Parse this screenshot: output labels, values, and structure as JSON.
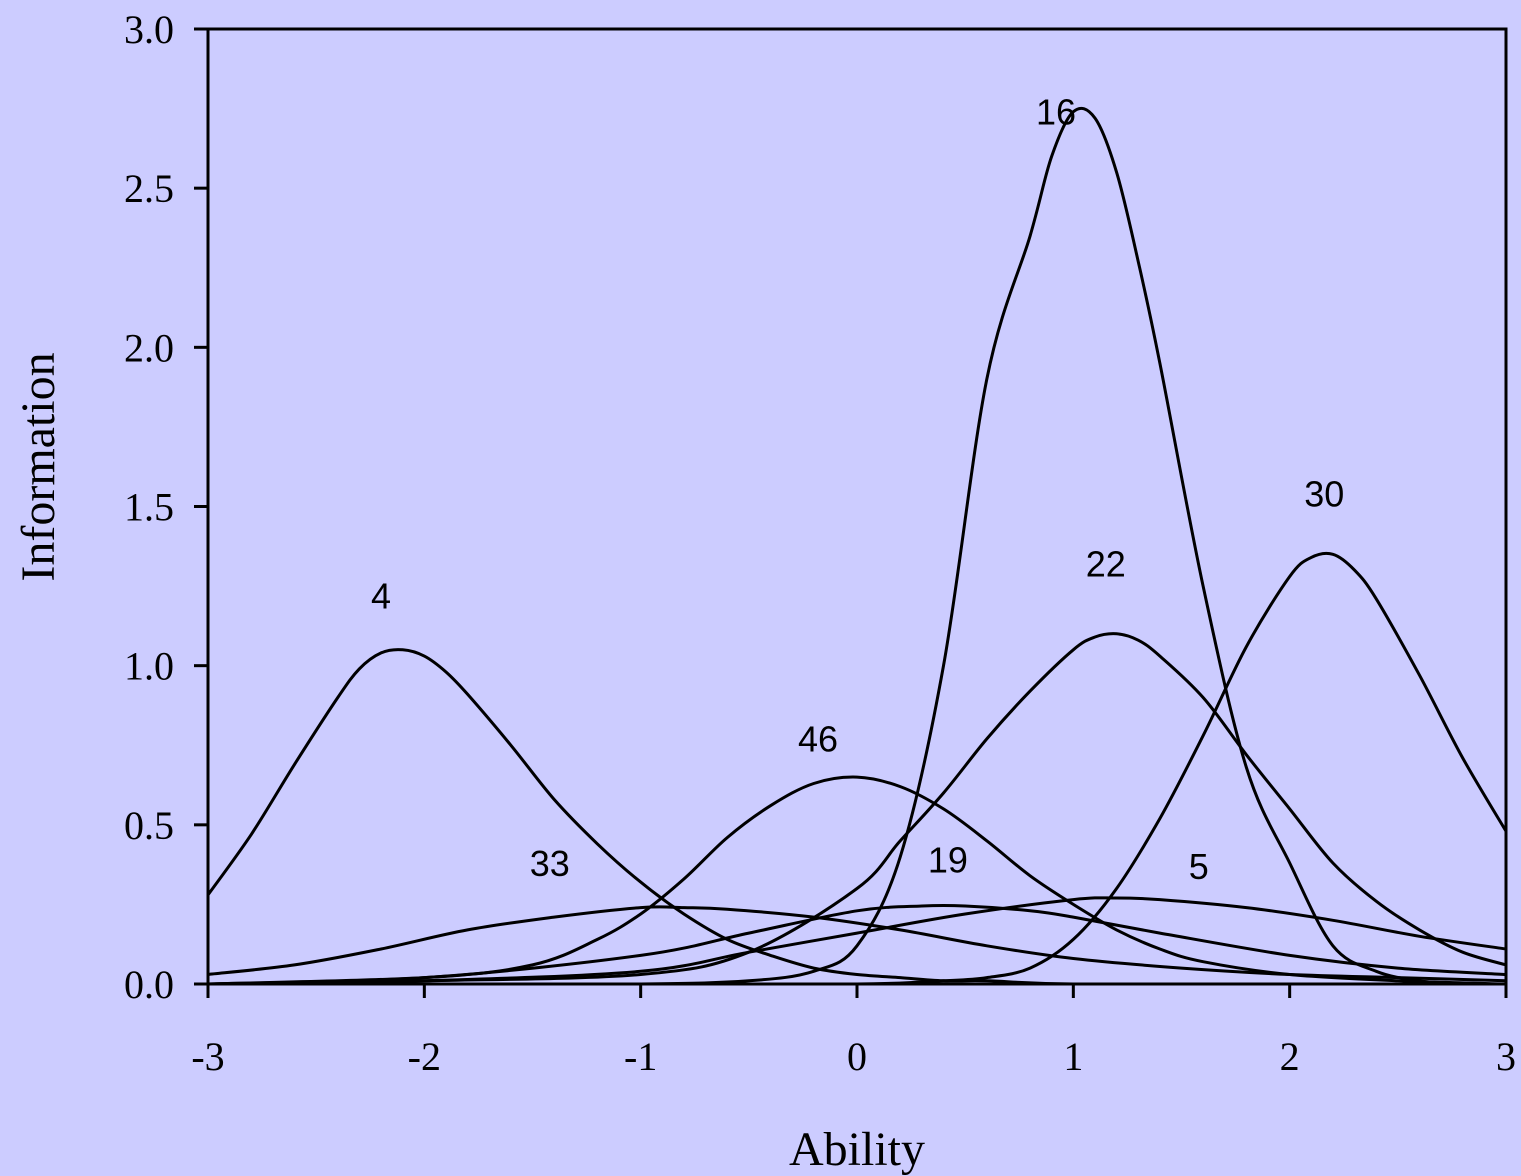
{
  "chart_data": {
    "type": "line",
    "title": "",
    "xlabel": "Ability",
    "ylabel": "Information",
    "xlim": [
      -3,
      3
    ],
    "ylim": [
      0,
      3
    ],
    "xticks": [
      -3,
      -2,
      -1,
      0,
      1,
      2,
      3
    ],
    "xtick_labels": [
      "-3",
      "-2",
      "-1",
      "0",
      "1",
      "2",
      "3"
    ],
    "yticks": [
      0,
      0.5,
      1,
      1.5,
      2,
      2.5,
      3
    ],
    "ytick_labels": [
      "0.0",
      "0.5",
      "1.0",
      "1.5",
      "2.0",
      "2.5",
      "3.0"
    ],
    "grid": false,
    "legend": "none (curves labeled directly)",
    "line_color": "#000000",
    "background_color": "#ccccff",
    "series": [
      {
        "name": "16",
        "label_at": [
          0.92,
          2.7
        ],
        "x": [
          -3,
          -2,
          -1,
          -0.5,
          -0.2,
          0,
          0.2,
          0.4,
          0.6,
          0.8,
          0.9,
          1.0,
          1.1,
          1.2,
          1.3,
          1.4,
          1.6,
          1.8,
          2.0,
          2.2,
          2.4,
          2.6,
          2.8,
          3.0
        ],
        "values": [
          0,
          0,
          0,
          0.01,
          0.04,
          0.12,
          0.4,
          1.0,
          1.9,
          2.35,
          2.6,
          2.74,
          2.72,
          2.55,
          2.27,
          1.95,
          1.25,
          0.68,
          0.38,
          0.12,
          0.04,
          0.01,
          0,
          0
        ]
      },
      {
        "name": "30",
        "label_at": [
          2.16,
          1.5
        ],
        "x": [
          -3,
          -1,
          0,
          0.4,
          0.6,
          0.8,
          1.0,
          1.2,
          1.4,
          1.6,
          1.8,
          2.0,
          2.1,
          2.2,
          2.3,
          2.4,
          2.6,
          2.8,
          3.0
        ],
        "values": [
          0,
          0,
          0,
          0.01,
          0.02,
          0.05,
          0.14,
          0.3,
          0.52,
          0.78,
          1.06,
          1.28,
          1.34,
          1.35,
          1.3,
          1.21,
          0.97,
          0.71,
          0.48
        ]
      },
      {
        "name": "22",
        "label_at": [
          1.15,
          1.28
        ],
        "x": [
          -3,
          -2,
          -1,
          -0.5,
          0,
          0.2,
          0.4,
          0.6,
          0.8,
          1.0,
          1.1,
          1.2,
          1.3,
          1.4,
          1.6,
          1.8,
          2.0,
          2.2,
          2.4,
          2.6,
          2.8,
          3.0
        ],
        "values": [
          0,
          0.01,
          0.03,
          0.1,
          0.3,
          0.45,
          0.6,
          0.77,
          0.92,
          1.05,
          1.09,
          1.1,
          1.08,
          1.03,
          0.9,
          0.72,
          0.55,
          0.38,
          0.26,
          0.17,
          0.1,
          0.06
        ]
      },
      {
        "name": "4",
        "label_at": [
          -2.2,
          1.18
        ],
        "x": [
          -3,
          -2.8,
          -2.6,
          -2.4,
          -2.3,
          -2.2,
          -2.1,
          -2.0,
          -1.9,
          -1.8,
          -1.6,
          -1.4,
          -1.2,
          -1.0,
          -0.8,
          -0.6,
          -0.4,
          -0.2,
          0,
          0.2,
          0.4,
          0.6,
          1.0,
          2.0,
          3.0
        ],
        "values": [
          0.28,
          0.47,
          0.69,
          0.9,
          0.99,
          1.04,
          1.05,
          1.03,
          0.98,
          0.91,
          0.75,
          0.58,
          0.44,
          0.32,
          0.22,
          0.14,
          0.09,
          0.05,
          0.03,
          0.02,
          0.01,
          0.01,
          0,
          0,
          0
        ]
      },
      {
        "name": "46",
        "label_at": [
          -0.18,
          0.73
        ],
        "x": [
          -3,
          -2,
          -1.5,
          -1.2,
          -1.0,
          -0.8,
          -0.6,
          -0.4,
          -0.2,
          0,
          0.2,
          0.4,
          0.6,
          0.8,
          1.0,
          1.2,
          1.4,
          1.6,
          2.0,
          2.5,
          3.0
        ],
        "values": [
          0,
          0.02,
          0.06,
          0.14,
          0.22,
          0.33,
          0.46,
          0.56,
          0.63,
          0.65,
          0.62,
          0.55,
          0.45,
          0.34,
          0.25,
          0.17,
          0.11,
          0.07,
          0.03,
          0.01,
          0
        ]
      },
      {
        "name": "33",
        "label_at": [
          -1.42,
          0.34
        ],
        "x": [
          -3,
          -2.6,
          -2.2,
          -1.8,
          -1.4,
          -1.0,
          -0.8,
          -0.6,
          -0.2,
          0.2,
          0.6,
          1.0,
          1.5,
          2.0,
          2.5,
          3.0
        ],
        "values": [
          0.03,
          0.06,
          0.11,
          0.17,
          0.21,
          0.24,
          0.24,
          0.235,
          0.21,
          0.17,
          0.12,
          0.08,
          0.05,
          0.03,
          0.02,
          0.01
        ]
      },
      {
        "name": "19",
        "label_at": [
          0.42,
          0.35
        ],
        "x": [
          -3,
          -2,
          -1,
          -0.5,
          0,
          0.3,
          0.5,
          0.8,
          1.0,
          1.4,
          2.0,
          2.5,
          3.0
        ],
        "values": [
          0,
          0.02,
          0.09,
          0.16,
          0.23,
          0.245,
          0.245,
          0.23,
          0.21,
          0.16,
          0.09,
          0.05,
          0.03
        ]
      },
      {
        "name": "5",
        "label_at": [
          1.58,
          0.33
        ],
        "x": [
          -3,
          -2,
          -1,
          -0.5,
          0,
          0.5,
          1.0,
          1.2,
          1.4,
          1.8,
          2.2,
          2.6,
          3.0
        ],
        "values": [
          0,
          0.01,
          0.04,
          0.1,
          0.16,
          0.22,
          0.265,
          0.27,
          0.265,
          0.24,
          0.2,
          0.15,
          0.11
        ]
      }
    ]
  }
}
